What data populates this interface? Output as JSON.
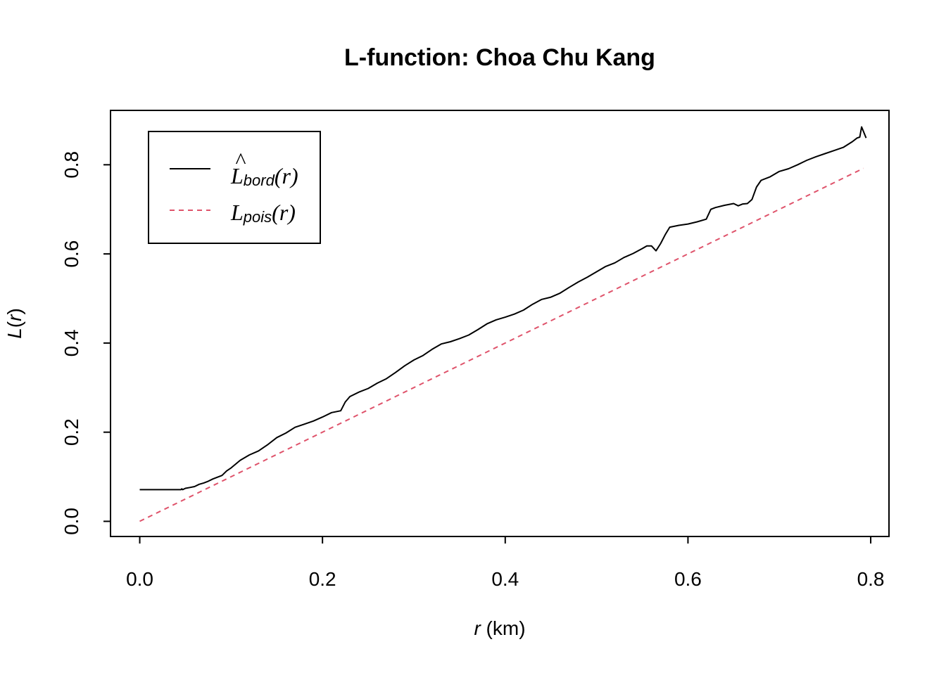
{
  "chart_data": {
    "type": "line",
    "title": "L-function: Choa Chu Kang",
    "xlabel_var": "r",
    "xlabel_unit": " (km)",
    "ylabel_main": "L",
    "ylabel_open": "(",
    "ylabel_var": "r",
    "ylabel_close": ")",
    "xlim": [
      -0.032,
      0.82
    ],
    "ylim": [
      -0.034,
      0.922
    ],
    "x_ticks": [
      "0.0",
      "0.2",
      "0.4",
      "0.6",
      "0.8"
    ],
    "y_ticks": [
      "0.0",
      "0.2",
      "0.4",
      "0.6",
      "0.8"
    ],
    "legend": {
      "position": "top-left",
      "entries": [
        {
          "main": "L",
          "hat": "^",
          "sub": "bord",
          "arg": "(r)",
          "color": "#000000",
          "dash": "solid"
        },
        {
          "main": "L",
          "hat": "",
          "sub": "pois",
          "arg": "(r)",
          "color": "#DF536B",
          "dash": "dashed"
        }
      ]
    },
    "series": [
      {
        "key": "bord",
        "color": "#000000",
        "style": "solid",
        "x": [
          0.0,
          0.045,
          0.046,
          0.047,
          0.05,
          0.055,
          0.06,
          0.065,
          0.07,
          0.075,
          0.08,
          0.09,
          0.095,
          0.1,
          0.11,
          0.12,
          0.13,
          0.14,
          0.15,
          0.16,
          0.17,
          0.18,
          0.19,
          0.2,
          0.21,
          0.22,
          0.225,
          0.23,
          0.24,
          0.25,
          0.26,
          0.27,
          0.28,
          0.29,
          0.3,
          0.31,
          0.32,
          0.33,
          0.34,
          0.35,
          0.36,
          0.37,
          0.38,
          0.39,
          0.4,
          0.41,
          0.42,
          0.43,
          0.44,
          0.45,
          0.46,
          0.47,
          0.48,
          0.49,
          0.5,
          0.51,
          0.52,
          0.53,
          0.54,
          0.55,
          0.555,
          0.56,
          0.565,
          0.57,
          0.575,
          0.58,
          0.59,
          0.6,
          0.61,
          0.62,
          0.625,
          0.63,
          0.64,
          0.65,
          0.655,
          0.66,
          0.665,
          0.67,
          0.675,
          0.68,
          0.69,
          0.7,
          0.71,
          0.72,
          0.73,
          0.74,
          0.75,
          0.76,
          0.77,
          0.78,
          0.785,
          0.788,
          0.79,
          0.795
        ],
        "y": [
          0.071,
          0.071,
          0.073,
          0.071,
          0.074,
          0.076,
          0.078,
          0.083,
          0.086,
          0.09,
          0.095,
          0.103,
          0.113,
          0.12,
          0.137,
          0.149,
          0.158,
          0.172,
          0.188,
          0.198,
          0.211,
          0.218,
          0.225,
          0.234,
          0.244,
          0.248,
          0.268,
          0.28,
          0.29,
          0.298,
          0.31,
          0.32,
          0.334,
          0.349,
          0.362,
          0.372,
          0.386,
          0.398,
          0.403,
          0.41,
          0.418,
          0.43,
          0.443,
          0.452,
          0.458,
          0.465,
          0.474,
          0.487,
          0.498,
          0.503,
          0.512,
          0.525,
          0.537,
          0.548,
          0.56,
          0.572,
          0.58,
          0.592,
          0.601,
          0.612,
          0.618,
          0.618,
          0.607,
          0.623,
          0.643,
          0.66,
          0.664,
          0.667,
          0.672,
          0.678,
          0.7,
          0.704,
          0.709,
          0.713,
          0.708,
          0.712,
          0.713,
          0.722,
          0.75,
          0.765,
          0.773,
          0.785,
          0.791,
          0.8,
          0.81,
          0.818,
          0.825,
          0.832,
          0.839,
          0.852,
          0.86,
          0.862,
          0.885,
          0.86
        ]
      },
      {
        "key": "pois",
        "color": "#DF536B",
        "style": "dashed",
        "x": [
          0.0,
          0.792
        ],
        "y": [
          0.0,
          0.792
        ]
      }
    ]
  }
}
